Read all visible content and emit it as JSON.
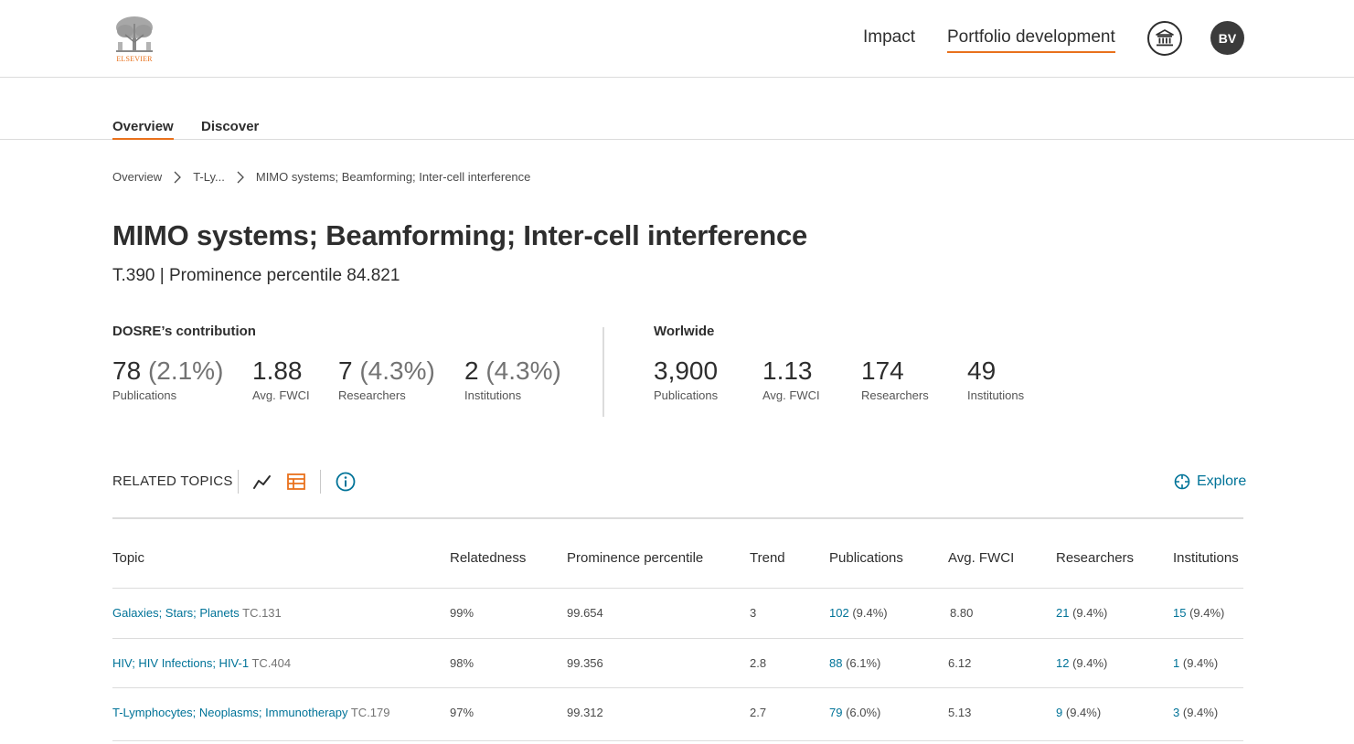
{
  "brand": {
    "logo_text": "ELSEVIER",
    "accent_color": "#e9711c",
    "link_color": "#007398"
  },
  "header": {
    "nav": [
      {
        "label": "Impact"
      },
      {
        "label": "Portfolio development"
      }
    ],
    "institution_icon": "institution-icon",
    "avatar_initials": "BV"
  },
  "subtabs": [
    {
      "label": "Overview"
    },
    {
      "label": "Discover"
    }
  ],
  "breadcrumb": [
    "Overview",
    "T-Ly...",
    "MIMO systems; Beamforming; Inter-cell interference"
  ],
  "page": {
    "title": "MIMO systems; Beamforming; Inter-cell interference",
    "subtitle": "T.390 | Prominence percentile 84.821"
  },
  "contribution": {
    "label": "DOSRE’s contribution",
    "metrics": [
      {
        "value": "78",
        "pct": "(2.1%)",
        "label": "Publications"
      },
      {
        "value": "1.88",
        "pct": "",
        "label": "Avg. FWCI"
      },
      {
        "value": "7",
        "pct": "(4.3%)",
        "label": "Researchers"
      },
      {
        "value": "2",
        "pct": "(4.3%)",
        "label": "Institutions"
      }
    ]
  },
  "worldwide": {
    "label": "Worlwide",
    "metrics": [
      {
        "value": "3,900",
        "label": "Publications"
      },
      {
        "value": "1.13",
        "label": "Avg. FWCI"
      },
      {
        "value": "174",
        "label": "Researchers"
      },
      {
        "value": "49",
        "label": "Institutions"
      }
    ]
  },
  "related_topics": {
    "label": "RELATED TOPICS",
    "explore_label": "Explore",
    "columns": [
      "Topic",
      "Relatedness",
      "Prominence percentile",
      "Trend",
      "Publications",
      "Avg. FWCI",
      "Researchers",
      "Institutions"
    ],
    "rows": [
      {
        "topic": "Galaxies; Stars; Planets",
        "code": "TC.131",
        "relatedness": "99%",
        "prominence": "99.654",
        "trend": "3",
        "pubs": "102",
        "pubs_pct": "(9.4%)",
        "fwci": "8.80",
        "researchers": "21",
        "researchers_pct": "(9.4%)",
        "institutions": "15",
        "institutions_pct": "(9.4%)"
      },
      {
        "topic": "HIV; HIV Infections; HIV-1",
        "code": "TC.404",
        "relatedness": "98%",
        "prominence": "99.356",
        "trend": "2.8",
        "pubs": "88",
        "pubs_pct": "(6.1%)",
        "fwci": "6.12",
        "researchers": "12",
        "researchers_pct": "(9.4%)",
        "institutions": "1",
        "institutions_pct": "(9.4%)"
      },
      {
        "topic": "T-Lymphocytes; Neoplasms; Immunotherapy",
        "code": "TC.179",
        "relatedness": "97%",
        "prominence": "99.312",
        "trend": "2.7",
        "pubs": "79",
        "pubs_pct": "(6.0%)",
        "fwci": "5.13",
        "researchers": "9",
        "researchers_pct": "(9.4%)",
        "institutions": "3",
        "institutions_pct": "(9.4%)"
      }
    ]
  }
}
